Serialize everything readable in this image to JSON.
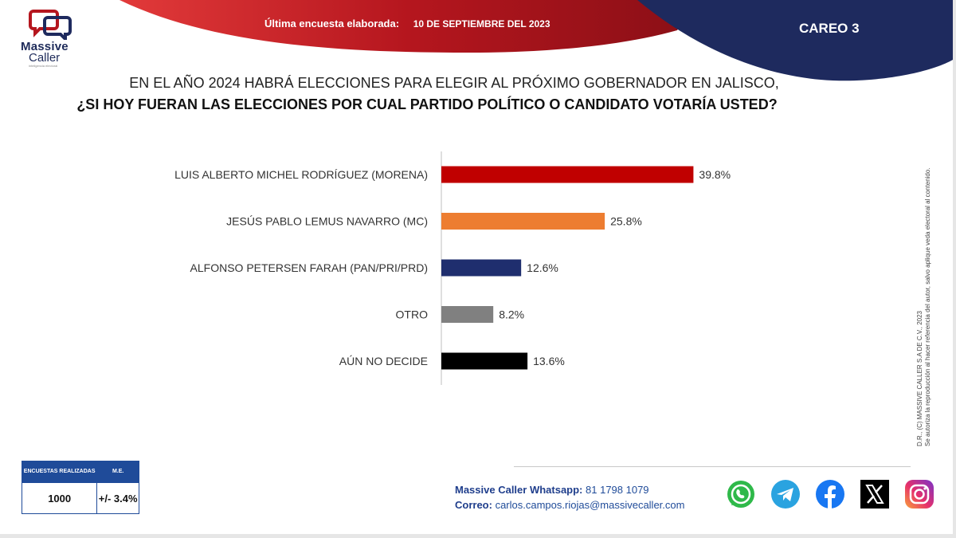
{
  "header": {
    "label": "Última encuesta elaborada:",
    "date": "10 DE SEPTIEMBRE DEL 2023",
    "careo": "CAREO 3"
  },
  "logo": {
    "line1": "Massive",
    "line2": "Caller",
    "tagline": "inteligencia electoral"
  },
  "question": {
    "line1": "EN EL AÑO 2024 HABRÁ ELECCIONES PARA ELEGIR AL PRÓXIMO GOBERNADOR EN JALISCO,",
    "line2": "¿SI HOY FUERAN LAS ELECCIONES POR CUAL PARTIDO POLÍTICO O CANDIDATO VOTARÍA USTED?"
  },
  "chart_data": {
    "type": "bar",
    "orientation": "horizontal",
    "categories": [
      "LUIS ALBERTO MICHEL RODRÍGUEZ (MORENA)",
      "JESÚS PABLO LEMUS NAVARRO (MC)",
      "ALFONSO PETERSEN FARAH (PAN/PRI/PRD)",
      "OTRO",
      "AÚN NO DECIDE"
    ],
    "values": [
      39.8,
      25.8,
      12.6,
      8.2,
      13.6
    ],
    "value_labels": [
      "39.8%",
      "25.8%",
      "12.6%",
      "8.2%",
      "13.6%"
    ],
    "colors": [
      "#c00000",
      "#ed7d31",
      "#1f2e6e",
      "#808080",
      "#000000"
    ],
    "xlim": [
      0,
      50
    ],
    "grid": false,
    "legend": "none"
  },
  "disclaimer": {
    "line1": "D.R., (C) MASSIVE CALLER S.A DE C.V., 2023",
    "line2": "Se autoriza la reproducción al hacer referencia del autor, salvo aplique veda electoral al contenido."
  },
  "stats": {
    "header1": "ENCUESTAS REALIZADAS",
    "header2": "M.E.",
    "value1": "1000",
    "value2": "+/- 3.4%"
  },
  "contact": {
    "whatsapp_label": "Massive Caller Whatsapp:",
    "whatsapp_value": "81 1798 1079",
    "email_label": "Correo:",
    "email_value": "carlos.campos.riojas@massivecaller.com"
  },
  "socials": [
    "whatsapp-icon",
    "telegram-icon",
    "facebook-icon",
    "x-icon",
    "instagram-icon"
  ],
  "colors": {
    "red": "#b5161e",
    "navy": "#1e2a5e",
    "blue": "#1f4b99"
  }
}
